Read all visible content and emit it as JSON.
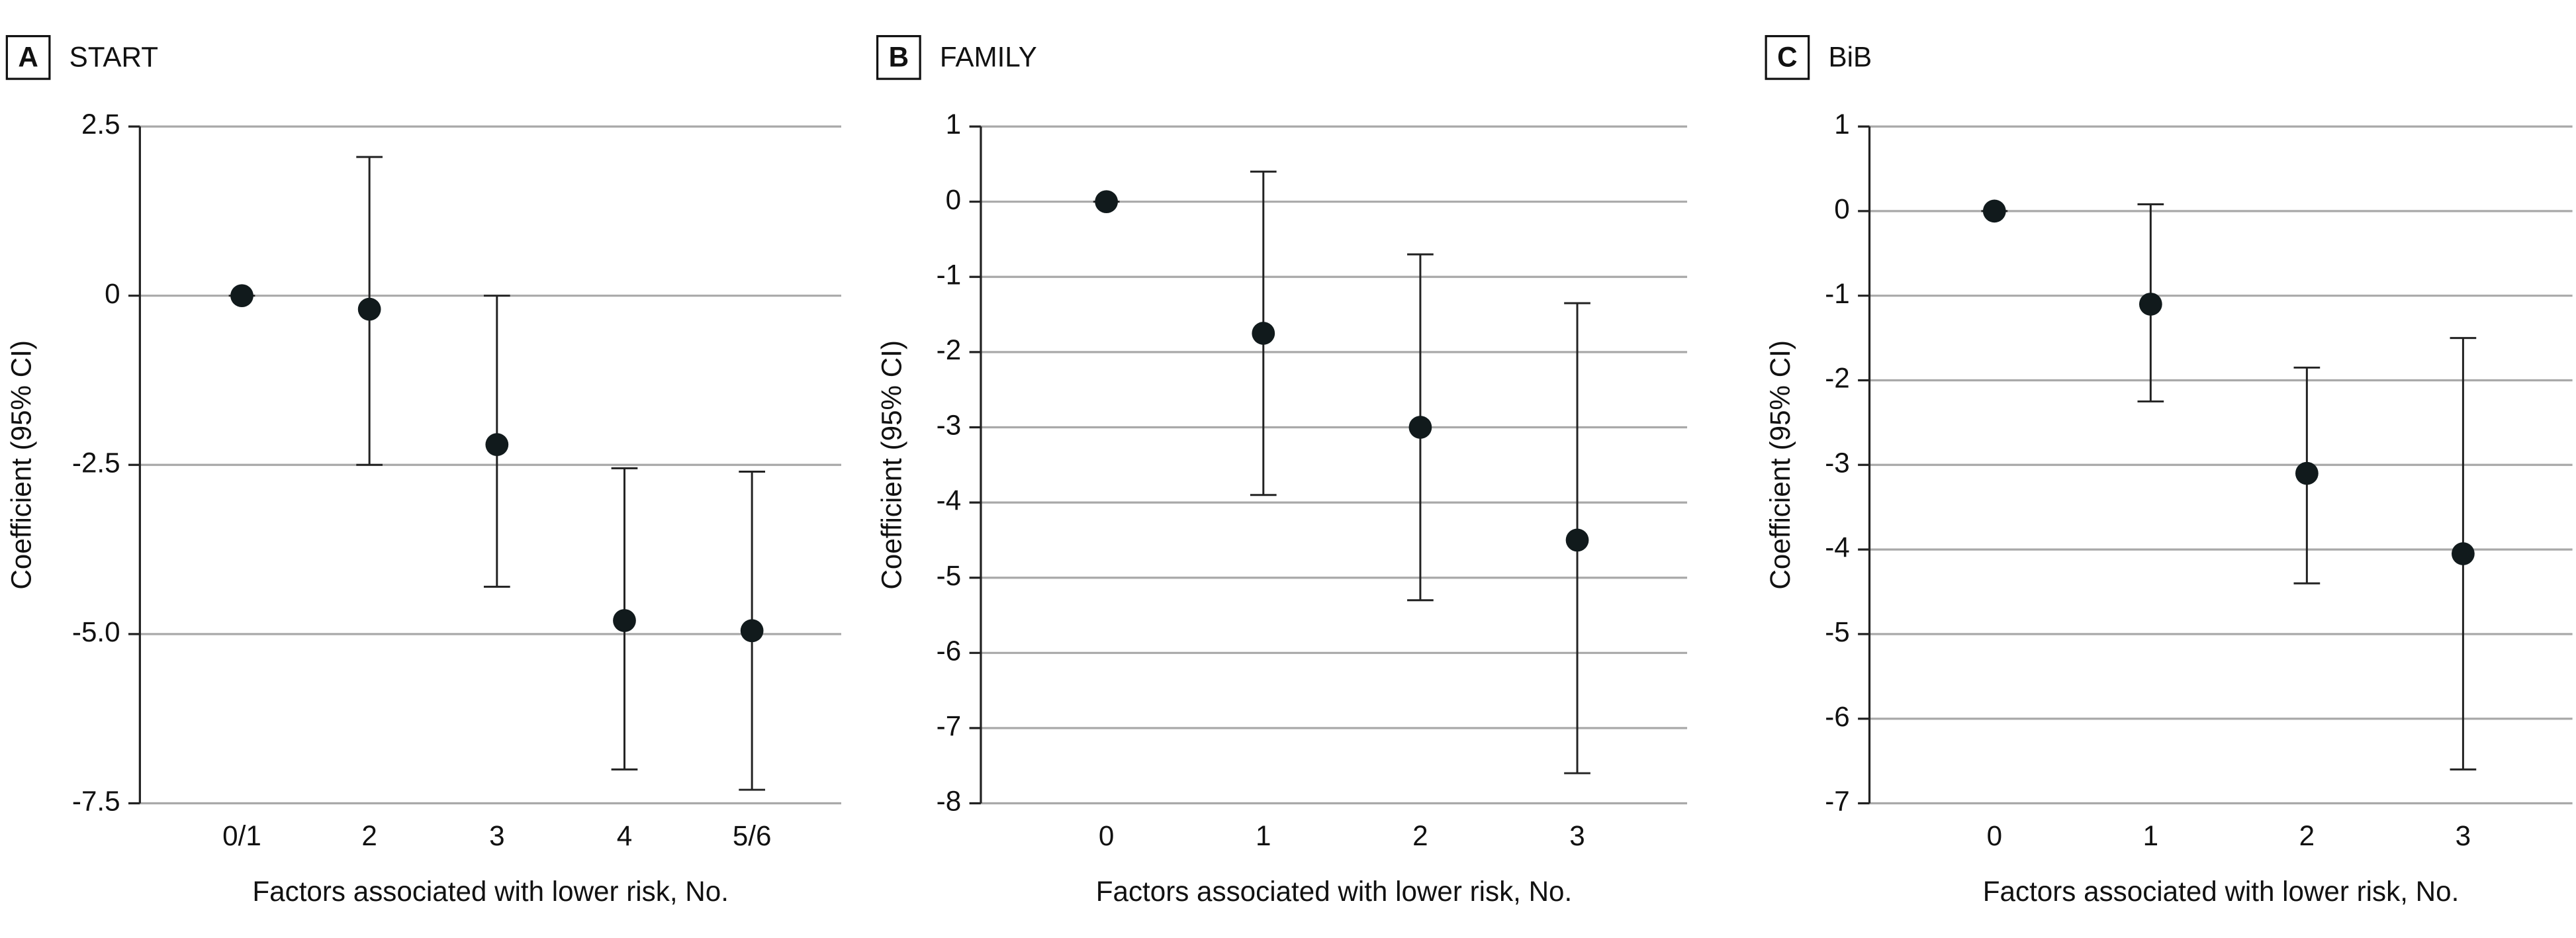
{
  "chart_data": [
    {
      "type": "errorbar",
      "panel": "A",
      "title": "START",
      "x_label": "Factors associated with lower risk, No.",
      "y_label": "Coefficient (95% CI)",
      "categories": [
        "0/1",
        "2",
        "3",
        "4",
        "5/6"
      ],
      "values": [
        0,
        -0.2,
        -2.2,
        -4.8,
        -4.95
      ],
      "ci_lower": [
        0,
        -2.5,
        -4.3,
        -7.0,
        -7.3
      ],
      "ci_upper": [
        0,
        2.05,
        0,
        -2.55,
        -2.6
      ],
      "ylim": [
        -7.5,
        2.5
      ],
      "yticks": [
        2.5,
        0,
        -2.5,
        {
          "value": -5,
          "label": "-5.0"
        },
        -7.5
      ],
      "grid": true,
      "color": "#111a1c"
    },
    {
      "type": "errorbar",
      "panel": "B",
      "title": "FAMILY",
      "x_label": "Factors associated with lower risk, No.",
      "y_label": "Coefficient (95% CI)",
      "categories": [
        "0",
        "1",
        "2",
        "3"
      ],
      "values": [
        0,
        -1.75,
        -3.0,
        -4.5
      ],
      "ci_lower": [
        0,
        -3.9,
        -5.3,
        -7.6
      ],
      "ci_upper": [
        0,
        0.4,
        -0.7,
        -1.35
      ],
      "ylim": [
        -8,
        1
      ],
      "yticks": [
        1,
        0,
        -1,
        -2,
        -3,
        -4,
        -5,
        -6,
        -7,
        -8
      ],
      "grid": true,
      "color": "#111a1c"
    },
    {
      "type": "errorbar",
      "panel": "C",
      "title": "BiB",
      "x_label": "Factors associated with lower risk, No.",
      "y_label": "Coefficient (95% CI)",
      "categories": [
        "0",
        "1",
        "2",
        "3"
      ],
      "values": [
        0,
        -1.1,
        -3.1,
        -4.05
      ],
      "ci_lower": [
        0,
        -2.25,
        -4.4,
        -6.6
      ],
      "ci_upper": [
        0,
        0.08,
        -1.85,
        -1.5
      ],
      "ylim": [
        -7,
        1
      ],
      "yticks": [
        1,
        0,
        -1,
        -2,
        -3,
        -4,
        -5,
        -6,
        -7
      ],
      "grid": true,
      "color": "#111a1c"
    }
  ]
}
